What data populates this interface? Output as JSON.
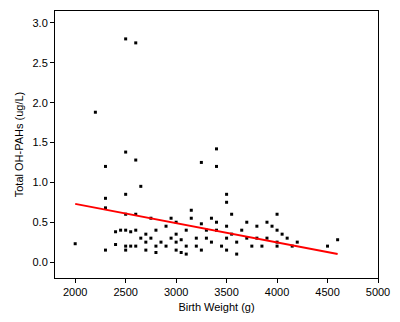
{
  "chart_data": {
    "type": "scatter",
    "x_label": "Birth Weight (g)",
    "y_label": "Total OH-PAHs (ug/L)",
    "xlim": [
      1800,
      5000
    ],
    "xticks": [
      2000,
      2500,
      3000,
      3500,
      4000,
      4500,
      5000
    ],
    "ylim": [
      -0.2,
      3.15
    ],
    "yticks": [
      {
        "value": 0,
        "label": "0.0"
      },
      {
        "value": 0.5,
        "label": "0.5"
      },
      {
        "value": 1,
        "label": "1.0"
      },
      {
        "value": 1.5,
        "label": "1.5"
      },
      {
        "value": 2,
        "label": "2.0"
      },
      {
        "value": 2.5,
        "label": "2.5"
      },
      {
        "value": 3,
        "label": "3.0"
      }
    ],
    "grid": false,
    "series": [
      {
        "type": "scatter",
        "marker": "square",
        "color": "#000000",
        "x": [
          2000,
          2200,
          2300,
          2300,
          2300,
          2300,
          2400,
          2400,
          2450,
          2500,
          2500,
          2500,
          2500,
          2500,
          2500,
          2500,
          2550,
          2550,
          2600,
          2600,
          2600,
          2600,
          2600,
          2650,
          2650,
          2700,
          2700,
          2700,
          2750,
          2750,
          2800,
          2800,
          2800,
          2850,
          2900,
          2900,
          2950,
          2950,
          3000,
          3000,
          3000,
          3000,
          3050,
          3050,
          3100,
          3100,
          3100,
          3150,
          3150,
          3200,
          3200,
          3250,
          3250,
          3250,
          3300,
          3300,
          3350,
          3350,
          3400,
          3400,
          3400,
          3400,
          3450,
          3500,
          3500,
          3500,
          3500,
          3500,
          3550,
          3550,
          3600,
          3600,
          3650,
          3700,
          3700,
          3750,
          3800,
          3800,
          3850,
          3900,
          3900,
          3950,
          4000,
          4000,
          4000,
          4000,
          4050,
          4100,
          4150,
          4200,
          4500,
          4600
        ],
        "values": [
          0.23,
          1.88,
          1.2,
          0.8,
          0.68,
          0.15,
          0.38,
          0.22,
          0.4,
          2.8,
          1.38,
          0.85,
          0.6,
          0.4,
          0.2,
          0.15,
          0.38,
          0.2,
          2.75,
          1.28,
          0.6,
          0.4,
          0.2,
          0.95,
          0.3,
          0.35,
          0.25,
          0.15,
          0.55,
          0.3,
          0.4,
          0.2,
          0.12,
          0.25,
          0.45,
          0.2,
          0.55,
          0.3,
          0.5,
          0.35,
          0.25,
          0.15,
          0.28,
          0.12,
          0.4,
          0.2,
          0.1,
          0.65,
          0.55,
          0.3,
          0.2,
          1.25,
          0.48,
          0.15,
          0.4,
          0.3,
          0.55,
          0.25,
          1.42,
          1.2,
          0.5,
          0.4,
          0.2,
          0.85,
          0.75,
          0.45,
          0.3,
          0.15,
          0.6,
          0.35,
          0.25,
          0.1,
          0.4,
          0.5,
          0.3,
          0.2,
          0.45,
          0.3,
          0.2,
          0.5,
          0.3,
          0.45,
          0.6,
          0.4,
          0.25,
          0.2,
          0.35,
          0.3,
          0.2,
          0.25,
          0.2,
          0.28
        ]
      },
      {
        "type": "line",
        "line_style": "solid",
        "color": "#ff0000",
        "x": [
          2000,
          4600
        ],
        "values": [
          0.73,
          0.1
        ]
      }
    ]
  }
}
